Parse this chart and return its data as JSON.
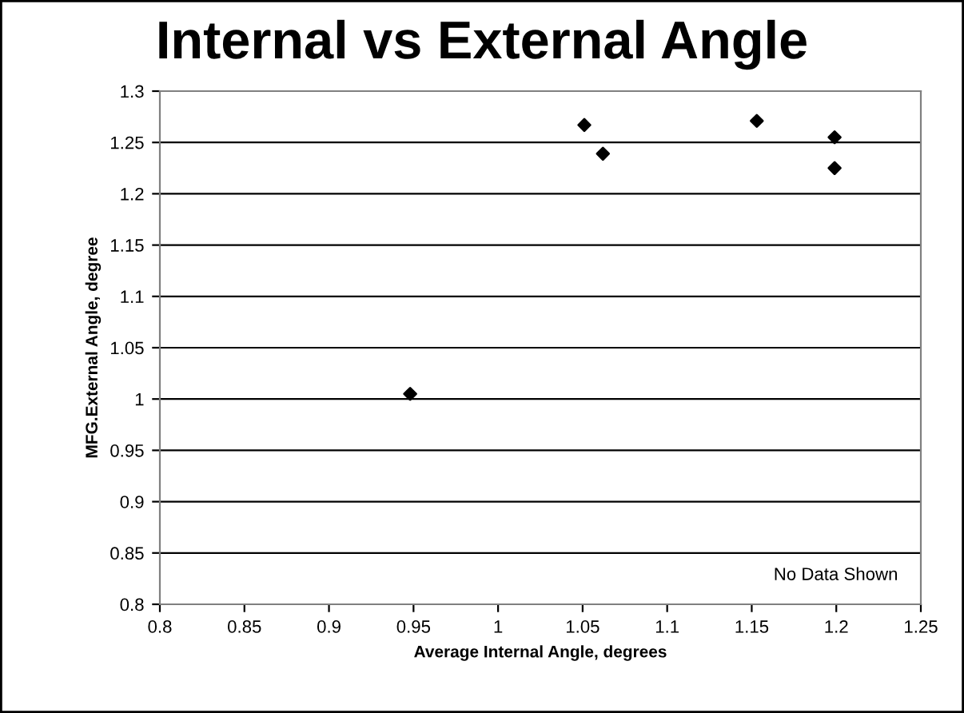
{
  "chart_data": {
    "type": "scatter",
    "title": "Internal vs External Angle",
    "xlabel": "Average Internal Angle, degrees",
    "ylabel": "MFG.External Angle, degree",
    "series": [
      {
        "color": "#000000",
        "x": [
          0.948,
          1.051,
          1.062,
          1.153,
          1.199,
          1.199
        ],
        "values": [
          1.005,
          1.267,
          1.239,
          1.271,
          1.255,
          1.225
        ]
      }
    ],
    "marker": "diamond",
    "xlim": [
      0.8,
      1.25
    ],
    "xticks": [
      0.8,
      0.85,
      0.9,
      0.95,
      1,
      1.05,
      1.1,
      1.15,
      1.2,
      1.25
    ],
    "ylim": [
      0.8,
      1.3
    ],
    "yticks": [
      0.8,
      0.85,
      0.9,
      0.95,
      1,
      1.05,
      1.1,
      1.15,
      1.2,
      1.25,
      1.3
    ],
    "grid": "y",
    "annotations": [
      "No Data Shown"
    ]
  }
}
